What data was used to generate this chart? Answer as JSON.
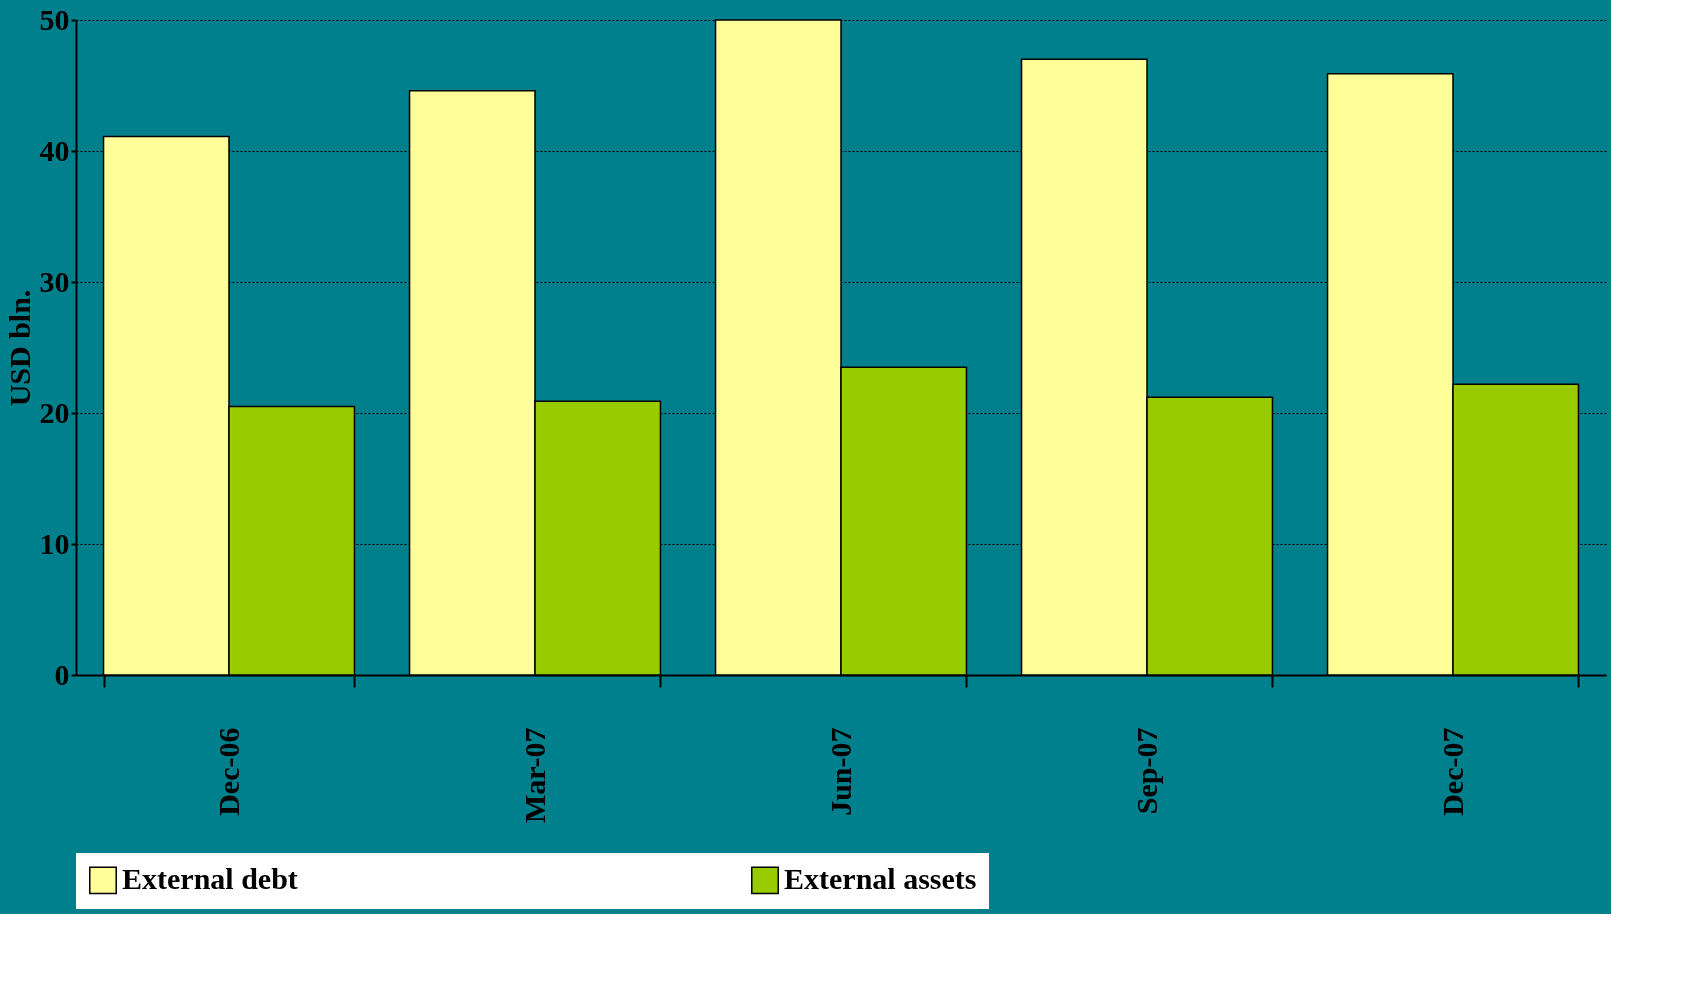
{
  "chart_data": {
    "type": "bar",
    "ylabel": "USD bln.",
    "categories": [
      "Dec-06",
      "Mar-07",
      "Jun-07",
      "Sep-07",
      "Dec-07"
    ],
    "series": [
      {
        "name": "External debt",
        "color": "#ffff99",
        "values": [
          41.1,
          44.6,
          50.0,
          47.0,
          45.9
        ]
      },
      {
        "name": "External assets",
        "color": "#99cc00",
        "values": [
          20.5,
          20.9,
          23.5,
          21.2,
          22.2
        ]
      }
    ],
    "ylim": [
      0,
      50
    ],
    "yticks": [
      0,
      10,
      20,
      30,
      40,
      50
    ],
    "grid": "y",
    "legend": "bottom"
  }
}
